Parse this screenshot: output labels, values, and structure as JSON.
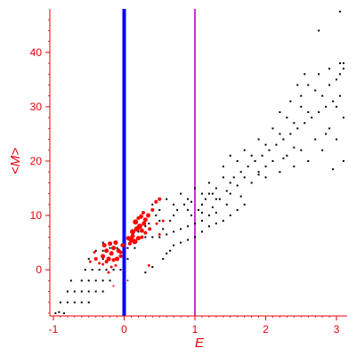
{
  "chart_data": {
    "type": "scatter",
    "title": "",
    "xlabel": "E",
    "ylabel": "<M>",
    "xlim": [
      -1.05,
      3.15
    ],
    "ylim": [
      -8.5,
      48
    ],
    "grid": false,
    "colors": {
      "axis": "#e8000b",
      "black_points": "#000000",
      "red_points": "#ff0000",
      "line_zero": "#0000ff",
      "line_one": "#cc33cc"
    },
    "x_ticks": [
      {
        "value": -1,
        "label": "-1"
      },
      {
        "value": 0,
        "label": "0"
      },
      {
        "value": 1,
        "label": "1"
      },
      {
        "value": 2,
        "label": "2"
      },
      {
        "value": 3,
        "label": "3"
      }
    ],
    "y_ticks": [
      {
        "value": 0,
        "label": "0"
      },
      {
        "value": 10,
        "label": "10"
      },
      {
        "value": 20,
        "label": "20"
      },
      {
        "value": 30,
        "label": "30"
      },
      {
        "value": 40,
        "label": "40"
      }
    ],
    "vertical_lines": [
      {
        "x": 0,
        "color": "#0000ff",
        "width": 4
      },
      {
        "x": 1,
        "color": "#cc33cc",
        "width": 2
      }
    ],
    "series": [
      {
        "marker": "small-dot",
        "color": "#000000",
        "points": [
          [
            -0.97,
            -8
          ],
          [
            -0.92,
            -7.8
          ],
          [
            -0.85,
            -8
          ],
          [
            -0.9,
            -6
          ],
          [
            -0.8,
            -6
          ],
          [
            -0.7,
            -6
          ],
          [
            -0.6,
            -6
          ],
          [
            -0.5,
            -6
          ],
          [
            -0.8,
            -4
          ],
          [
            -0.7,
            -4
          ],
          [
            -0.6,
            -4
          ],
          [
            -0.5,
            -4
          ],
          [
            -0.4,
            -4
          ],
          [
            -0.3,
            -4
          ],
          [
            -0.75,
            -2
          ],
          [
            -0.6,
            -2
          ],
          [
            -0.5,
            -2
          ],
          [
            -0.4,
            -2
          ],
          [
            -0.3,
            -2
          ],
          [
            -0.2,
            -2
          ],
          [
            -0.55,
            0
          ],
          [
            -0.45,
            0
          ],
          [
            -0.35,
            0
          ],
          [
            -0.25,
            0
          ],
          [
            -0.15,
            0
          ],
          [
            -0.05,
            0
          ],
          [
            -0.5,
            2
          ],
          [
            -0.4,
            2
          ],
          [
            -0.3,
            2
          ],
          [
            -0.2,
            2
          ],
          [
            -0.1,
            2
          ],
          [
            0.05,
            2
          ],
          [
            -0.4,
            3.5
          ],
          [
            -0.3,
            3.5
          ],
          [
            -0.2,
            4
          ],
          [
            -0.1,
            4
          ],
          [
            0.05,
            4
          ],
          [
            0.15,
            4
          ],
          [
            -0.3,
            5
          ],
          [
            0.1,
            6
          ],
          [
            0.2,
            6
          ],
          [
            0.3,
            6
          ],
          [
            0.4,
            6
          ],
          [
            0.5,
            6
          ],
          [
            0.6,
            6.5
          ],
          [
            0.7,
            7
          ],
          [
            0.8,
            7.5
          ],
          [
            0.9,
            8
          ],
          [
            1.0,
            8.5
          ],
          [
            1.1,
            9
          ],
          [
            1.2,
            10
          ],
          [
            1.3,
            10.5
          ],
          [
            0.3,
            8
          ],
          [
            0.5,
            9
          ],
          [
            0.7,
            10
          ],
          [
            0.9,
            11
          ],
          [
            1.1,
            12
          ],
          [
            1.3,
            13
          ],
          [
            1.5,
            14
          ],
          [
            0.4,
            12
          ],
          [
            0.6,
            13
          ],
          [
            0.8,
            14
          ],
          [
            1.0,
            15
          ],
          [
            1.2,
            16
          ],
          [
            1.4,
            17
          ],
          [
            0.5,
            11
          ],
          [
            0.7,
            12
          ],
          [
            0.9,
            13
          ],
          [
            1.1,
            14
          ],
          [
            1.3,
            15
          ],
          [
            1.5,
            16
          ],
          [
            1.7,
            17
          ],
          [
            1.9,
            18
          ],
          [
            1.2,
            14
          ],
          [
            1.35,
            13
          ],
          [
            1.45,
            12
          ],
          [
            1.55,
            17
          ],
          [
            1.65,
            18
          ],
          [
            1.75,
            19
          ],
          [
            1.85,
            20
          ],
          [
            1.95,
            21
          ],
          [
            2.05,
            22
          ],
          [
            2.15,
            23
          ],
          [
            2.25,
            24
          ],
          [
            2.35,
            25
          ],
          [
            2.45,
            26
          ],
          [
            2.55,
            27
          ],
          [
            2.65,
            28
          ],
          [
            2.75,
            29
          ],
          [
            2.85,
            30
          ],
          [
            2.95,
            31
          ],
          [
            3.05,
            32
          ],
          [
            1.6,
            20
          ],
          [
            1.8,
            21
          ],
          [
            2.0,
            23
          ],
          [
            2.2,
            25
          ],
          [
            2.4,
            27
          ],
          [
            2.6,
            29
          ],
          [
            2.8,
            32
          ],
          [
            3.0,
            35
          ],
          [
            3.1,
            37
          ],
          [
            2.5,
            30
          ],
          [
            2.7,
            33
          ],
          [
            2.9,
            34
          ],
          [
            3.05,
            36
          ],
          [
            2.0,
            19
          ],
          [
            2.1,
            20
          ],
          [
            2.3,
            21
          ],
          [
            2.5,
            22
          ],
          [
            2.7,
            24
          ],
          [
            2.9,
            26
          ],
          [
            3.1,
            28
          ],
          [
            2.2,
            18
          ],
          [
            2.4,
            19
          ],
          [
            2.6,
            20
          ],
          [
            2.8,
            22
          ],
          [
            3.0,
            24
          ],
          [
            3.1,
            20
          ],
          [
            2.95,
            18.5
          ],
          [
            2.0,
            17
          ],
          [
            1.8,
            16
          ],
          [
            1.6,
            15.5
          ],
          [
            1.4,
            19
          ],
          [
            1.5,
            21
          ],
          [
            1.7,
            22
          ],
          [
            1.9,
            24
          ],
          [
            2.1,
            26
          ],
          [
            2.3,
            28
          ],
          [
            2.5,
            32
          ],
          [
            2.6,
            34
          ],
          [
            2.75,
            36
          ],
          [
            2.9,
            37
          ],
          [
            3.05,
            38
          ],
          [
            3.1,
            38
          ],
          [
            2.55,
            36
          ],
          [
            2.45,
            34
          ],
          [
            2.35,
            31
          ],
          [
            0.2,
            7
          ],
          [
            0.35,
            8.5
          ],
          [
            0.45,
            10
          ],
          [
            0.55,
            7.5
          ],
          [
            0.65,
            9
          ],
          [
            0.75,
            11
          ],
          [
            0.85,
            12
          ],
          [
            0.95,
            10
          ],
          [
            1.05,
            11
          ],
          [
            1.15,
            13
          ],
          [
            1.25,
            14
          ],
          [
            0.3,
            -0.5
          ],
          [
            0.6,
            3
          ],
          [
            0.7,
            4.5
          ],
          [
            0.8,
            5
          ],
          [
            0.9,
            5.5
          ],
          [
            1.0,
            6
          ],
          [
            1.1,
            7
          ],
          [
            1.2,
            8
          ],
          [
            1.3,
            8.5
          ],
          [
            1.4,
            9
          ],
          [
            1.5,
            10
          ],
          [
            1.6,
            11
          ],
          [
            1.7,
            12
          ],
          [
            0.4,
            0.5
          ],
          [
            0.55,
            2
          ],
          [
            0.65,
            3.5
          ],
          [
            2.25,
            20.5
          ],
          [
            2.4,
            22.5
          ],
          [
            2.85,
            25
          ],
          [
            3.0,
            30
          ],
          [
            2.75,
            44
          ],
          [
            3.05,
            47.5
          ],
          [
            2.2,
            29
          ],
          [
            1.9,
            17.5
          ],
          [
            1.1,
            10.5
          ],
          [
            0.95,
            12.5
          ],
          [
            1.25,
            11.5
          ],
          [
            1.45,
            14.5
          ],
          [
            1.65,
            13.5
          ]
        ]
      },
      {
        "marker": "red-cluster",
        "color": "#ff0000",
        "points": [
          [
            -0.3,
            2.5,
            5
          ],
          [
            -0.25,
            3.5,
            5
          ],
          [
            -0.28,
            4.5,
            5
          ],
          [
            -0.22,
            2,
            5
          ],
          [
            -0.18,
            3,
            5
          ],
          [
            -0.15,
            4,
            5
          ],
          [
            -0.12,
            5,
            5
          ],
          [
            -0.08,
            3.5,
            5
          ],
          [
            -0.05,
            2.5,
            4
          ],
          [
            -0.02,
            4.5,
            5
          ],
          [
            -0.15,
            1.8,
            4
          ],
          [
            -0.2,
            4.8,
            5
          ],
          [
            -0.1,
            2,
            5
          ],
          [
            -0.25,
            1.5,
            4
          ],
          [
            0.1,
            5.5,
            6
          ],
          [
            0.15,
            5.2,
            6
          ],
          [
            0.2,
            5.8,
            5
          ],
          [
            0.25,
            6,
            4
          ],
          [
            0.12,
            7,
            6
          ],
          [
            0.18,
            7.5,
            6
          ],
          [
            0.22,
            8,
            6
          ],
          [
            0.28,
            8.5,
            5
          ],
          [
            0.3,
            9.2,
            5
          ],
          [
            0.16,
            8.8,
            6
          ],
          [
            0.24,
            9.8,
            5
          ],
          [
            0.34,
            10,
            5
          ],
          [
            0.4,
            11,
            4
          ],
          [
            0.45,
            12.5,
            4
          ],
          [
            0.5,
            13,
            4
          ],
          [
            0.36,
            7.5,
            4
          ],
          [
            0.46,
            8.5,
            3
          ],
          [
            0.55,
            9,
            3
          ],
          [
            0.5,
            6.5,
            3
          ],
          [
            -0.4,
            2,
            4
          ],
          [
            -0.35,
            1.2,
            3
          ],
          [
            -0.42,
            3.2,
            3
          ],
          [
            -0.48,
            1.5,
            3
          ],
          [
            -0.3,
            1,
            3
          ],
          [
            -0.18,
            0.5,
            3
          ],
          [
            -0.22,
            -0.5,
            3
          ],
          [
            -0.12,
            0.8,
            3
          ],
          [
            0.35,
            0.8,
            3
          ],
          [
            -0.15,
            -3,
            2
          ],
          [
            0.05,
            -2,
            2
          ],
          [
            0.25,
            7.2,
            5
          ],
          [
            0.3,
            6.8,
            4
          ],
          [
            0.2,
            9.5,
            4
          ],
          [
            0.27,
            10.5,
            4
          ],
          [
            -0.05,
            3.2,
            4
          ],
          [
            0.08,
            4.8,
            4
          ],
          [
            0.12,
            6.2,
            5
          ],
          [
            0.06,
            5.8,
            5
          ]
        ]
      }
    ]
  }
}
